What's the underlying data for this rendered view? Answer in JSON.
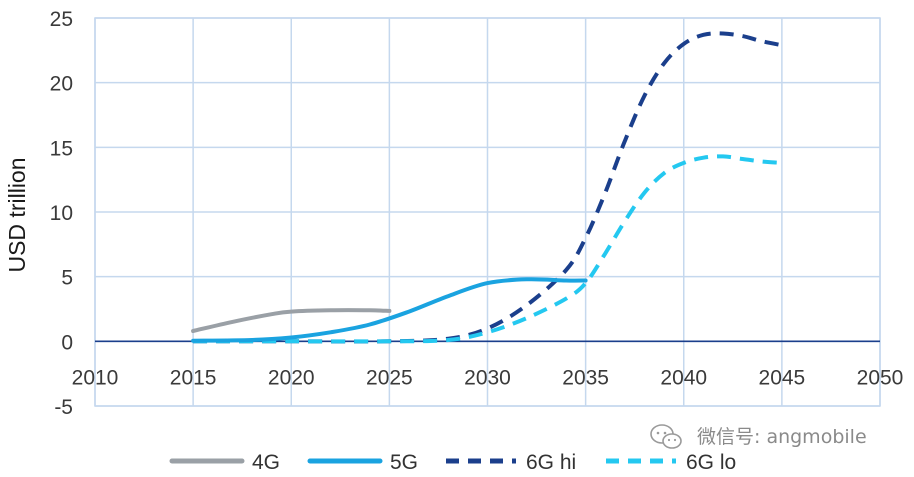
{
  "chart_data": {
    "type": "line",
    "title": "",
    "xlabel": "",
    "ylabel": "USD trillion",
    "xlim": [
      2010,
      2050
    ],
    "ylim": [
      -5,
      25
    ],
    "xticks": [
      "2010",
      "2015",
      "2020",
      "2025",
      "2030",
      "2035",
      "2040",
      "2045",
      "2050"
    ],
    "yticks": [
      "25",
      "20",
      "15",
      "10",
      "5",
      "0",
      "-5"
    ],
    "grid": true,
    "legend_position": "bottom",
    "series": [
      {
        "name": "4G",
        "color": "#9aa0a6",
        "dash": "solid",
        "points": [
          [
            2015,
            0.8
          ],
          [
            2017,
            1.5
          ],
          [
            2019,
            2.1
          ],
          [
            2020,
            2.3
          ],
          [
            2022,
            2.4
          ],
          [
            2024,
            2.4
          ],
          [
            2025,
            2.35
          ]
        ]
      },
      {
        "name": "5G",
        "color": "#1aa3e0",
        "dash": "solid",
        "points": [
          [
            2015,
            0.05
          ],
          [
            2018,
            0.1
          ],
          [
            2020,
            0.3
          ],
          [
            2022,
            0.7
          ],
          [
            2024,
            1.3
          ],
          [
            2026,
            2.3
          ],
          [
            2028,
            3.5
          ],
          [
            2030,
            4.5
          ],
          [
            2032,
            4.8
          ],
          [
            2034,
            4.7
          ],
          [
            2035,
            4.7
          ]
        ]
      },
      {
        "name": "6G hi",
        "color": "#1b3f8c",
        "dash": "dash",
        "points": [
          [
            2015,
            0.0
          ],
          [
            2020,
            0.0
          ],
          [
            2025,
            0.0
          ],
          [
            2028,
            0.2
          ],
          [
            2030,
            1.0
          ],
          [
            2032,
            2.8
          ],
          [
            2034,
            5.5
          ],
          [
            2035,
            8.0
          ],
          [
            2036,
            11.5
          ],
          [
            2037,
            15.5
          ],
          [
            2038,
            19.0
          ],
          [
            2039,
            21.5
          ],
          [
            2040,
            23.0
          ],
          [
            2041,
            23.7
          ],
          [
            2042,
            23.8
          ],
          [
            2043,
            23.6
          ],
          [
            2044,
            23.2
          ],
          [
            2045,
            22.9
          ]
        ]
      },
      {
        "name": "6G lo",
        "color": "#24c8f0",
        "dash": "dash",
        "points": [
          [
            2015,
            0.0
          ],
          [
            2020,
            0.0
          ],
          [
            2025,
            0.0
          ],
          [
            2028,
            0.1
          ],
          [
            2030,
            0.7
          ],
          [
            2032,
            1.8
          ],
          [
            2034,
            3.3
          ],
          [
            2035,
            4.5
          ],
          [
            2036,
            6.8
          ],
          [
            2037,
            9.3
          ],
          [
            2038,
            11.5
          ],
          [
            2039,
            13.0
          ],
          [
            2040,
            13.8
          ],
          [
            2041,
            14.2
          ],
          [
            2042,
            14.3
          ],
          [
            2043,
            14.1
          ],
          [
            2044,
            13.9
          ],
          [
            2045,
            13.8
          ]
        ]
      }
    ]
  },
  "watermark": {
    "text": "微信号: angmobile",
    "icon": "wechat-icon"
  }
}
